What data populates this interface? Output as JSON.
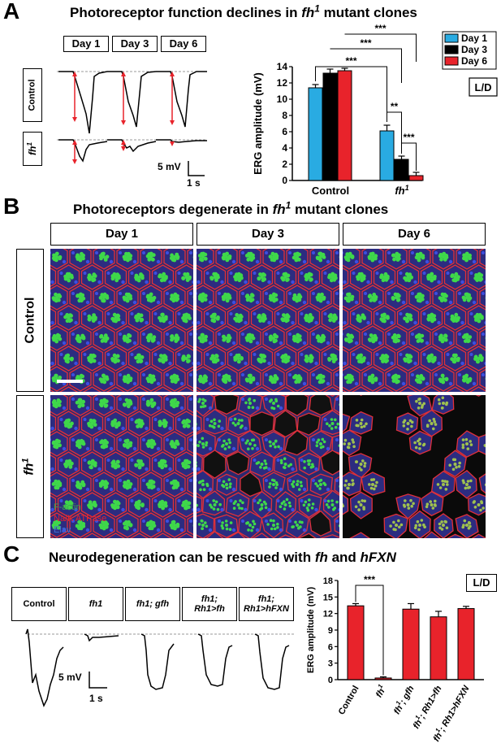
{
  "panelA": {
    "label": "A",
    "title_pre": "Photoreceptor function declines in ",
    "title_gene": "fh",
    "title_sup": "1",
    "title_post": " mutant clones",
    "day_boxes": [
      "Day 1",
      "Day 3",
      "Day 6"
    ],
    "row_labels": {
      "control": "Control",
      "mutant": "fh",
      "mutant_sup": "1"
    },
    "scale": {
      "mv": "5 mV",
      "s": "1 s"
    },
    "legend": [
      "Day 1",
      "Day 3",
      "Day 6"
    ],
    "ld_badge": "L/D",
    "colors": {
      "day1": "#29abe2",
      "day3": "#000000",
      "day6": "#e8232b"
    }
  },
  "panelB": {
    "label": "B",
    "title_pre": "Photoreceptors degenerate in ",
    "title_gene": "fh",
    "title_sup": "1",
    "title_post": " mutant clones",
    "columns": [
      "Day 1",
      "Day 3",
      "Day 6"
    ],
    "row_labels": {
      "control": "Control",
      "mutant": "fh",
      "mutant_sup": "1"
    },
    "stain_legend": [
      {
        "label": "F-actin",
        "color": "#3fa34d"
      },
      {
        "label": "Na/K ATPase",
        "color": "#e8232b"
      },
      {
        "label": "Elav",
        "color": "#3f6fd8"
      }
    ]
  },
  "panelC": {
    "label": "C",
    "title_pre": "Neurodegeneration can be rescued with ",
    "title_gene1": "fh",
    "title_and": " and ",
    "title_gene2": "hFXN",
    "genotype_boxes": [
      {
        "l1": "Control",
        "l2": ""
      },
      {
        "l1": "fh1",
        "l2": ""
      },
      {
        "l1": "fh1; gfh",
        "l2": ""
      },
      {
        "l1": "fh1;",
        "l2": "Rh1>fh"
      },
      {
        "l1": "fh1;",
        "l2": "Rh1>hFXN"
      }
    ],
    "scale": {
      "mv": "5 mV",
      "s": "1 s"
    },
    "ld_badge": "L/D"
  },
  "chart_data": [
    {
      "type": "bar",
      "panel": "A",
      "ylabel": "ERG amplitude (mV)",
      "ylim": [
        0,
        14
      ],
      "yticks": [
        0,
        2,
        4,
        6,
        8,
        10,
        12,
        14
      ],
      "categories": [
        "Control",
        "fh1"
      ],
      "series": [
        {
          "name": "Day 1",
          "color": "#29abe2",
          "values": [
            11.4,
            6.1
          ],
          "errors": [
            0.4,
            0.7
          ]
        },
        {
          "name": "Day 3",
          "color": "#000000",
          "values": [
            13.2,
            2.6
          ],
          "errors": [
            0.5,
            0.4
          ]
        },
        {
          "name": "Day 6",
          "color": "#e8232b",
          "values": [
            13.5,
            0.6
          ],
          "errors": [
            0.3,
            0.4
          ]
        }
      ],
      "legend_position": "top-right",
      "significance": [
        "***",
        "***",
        "***",
        "**",
        "***"
      ]
    },
    {
      "type": "bar",
      "panel": "C",
      "ylabel": "ERG amplitude (mV)",
      "ylim": [
        0,
        18
      ],
      "yticks": [
        0,
        3,
        6,
        9,
        12,
        15,
        18
      ],
      "categories": [
        "Control",
        "fh1",
        "fh1; gfh",
        "fh1; Rh1>fh",
        "fh1; Rh1>hFXN"
      ],
      "values": [
        13.4,
        0.3,
        12.8,
        11.4,
        12.9
      ],
      "errors": [
        0.4,
        0.2,
        1.0,
        1.0,
        0.4
      ],
      "color": "#e8232b",
      "significance": [
        "***"
      ]
    }
  ]
}
